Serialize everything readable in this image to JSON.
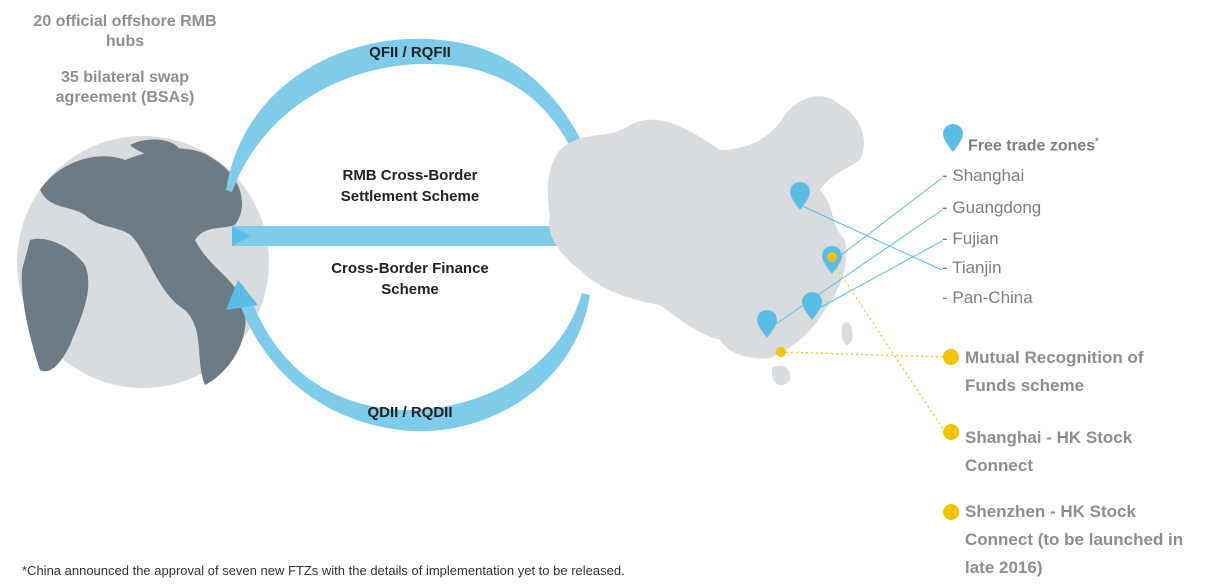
{
  "globe_notes": [
    "20 official offshore RMB hubs",
    "35 bilateral swap agreement (BSAs)"
  ],
  "flows": [
    {
      "label": "QFII / RQFII"
    },
    {
      "label": "RMB Cross-Border Settlement Scheme"
    },
    {
      "label": "Cross-Border Finance Scheme"
    },
    {
      "label": "QDII / RQDII"
    }
  ],
  "free_trade_zones": {
    "title": "Free trade zones",
    "note_mark": "*",
    "items": [
      "- Shanghai",
      "- Guangdong",
      "- Fujian",
      "- Tianjin",
      "- Pan-China"
    ]
  },
  "schemes": [
    "Mutual Recognition of Funds scheme",
    "Shanghai - HK Stock Connect",
    "Shenzhen - HK Stock Connect (to be launched in late 2016)"
  ],
  "footnote": "*China announced the approval of seven new FTZs with the details of implementation yet to be released."
}
